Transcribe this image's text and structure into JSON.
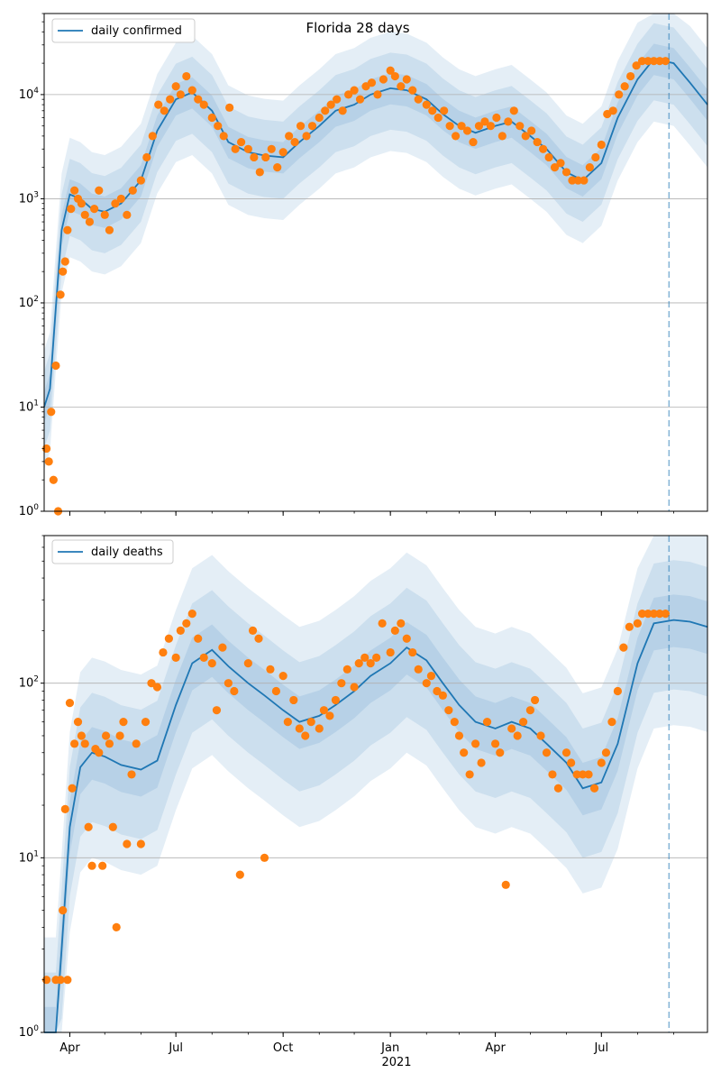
{
  "figure_title": "Florida 28 days",
  "x_axis": {
    "start": "2020-03-10",
    "end": "2021-09-30",
    "ticks": [
      {
        "date": "2020-04-01",
        "label": "Apr"
      },
      {
        "date": "2020-07-01",
        "label": "Jul"
      },
      {
        "date": "2020-10-01",
        "label": "Oct"
      },
      {
        "date": "2021-01-01",
        "label": "Jan"
      },
      {
        "date": "2021-04-01",
        "label": "Apr"
      },
      {
        "date": "2021-07-01",
        "label": "Jul"
      }
    ],
    "year_label": "2021",
    "cutoff_date": "2021-08-28"
  },
  "colors": {
    "line": "#1f77b4",
    "band": "#1f77b4",
    "dots": "#ff7f0e",
    "grid": "#b0b0b0"
  },
  "chart_data": [
    {
      "type": "line",
      "title": "Florida 28 days",
      "legend": "daily confirmed",
      "legend_position": "top-left",
      "yscale": "log",
      "ylim": [
        1,
        60000
      ],
      "yticks": [
        {
          "v": 1,
          "label": "10^0"
        },
        {
          "v": 10,
          "label": "10^1"
        },
        {
          "v": 100,
          "label": "10^2"
        },
        {
          "v": 1000,
          "label": "10^3"
        },
        {
          "v": 10000,
          "label": "10^4"
        }
      ],
      "grid": "horizontal",
      "series": [
        {
          "name": "daily confirmed",
          "kind": "model",
          "x": [
            "2020-03-10",
            "2020-03-15",
            "2020-03-20",
            "2020-03-25",
            "2020-04-01",
            "2020-04-10",
            "2020-04-20",
            "2020-05-01",
            "2020-05-15",
            "2020-06-01",
            "2020-06-15",
            "2020-07-01",
            "2020-07-15",
            "2020-08-01",
            "2020-08-15",
            "2020-09-01",
            "2020-09-15",
            "2020-10-01",
            "2020-10-15",
            "2020-11-01",
            "2020-11-15",
            "2020-12-01",
            "2020-12-15",
            "2021-01-01",
            "2021-01-15",
            "2021-02-01",
            "2021-02-15",
            "2021-03-01",
            "2021-03-15",
            "2021-04-01",
            "2021-04-15",
            "2021-05-01",
            "2021-05-15",
            "2021-06-01",
            "2021-06-15",
            "2021-07-01",
            "2021-07-15",
            "2021-08-01",
            "2021-08-15",
            "2021-09-01",
            "2021-09-15",
            "2021-09-30"
          ],
          "y": [
            10,
            15,
            90,
            500,
            1100,
            1000,
            800,
            750,
            900,
            1500,
            4500,
            9000,
            10500,
            7000,
            3500,
            2800,
            2600,
            2500,
            3500,
            5000,
            7000,
            8000,
            10000,
            11500,
            11000,
            9000,
            6500,
            5000,
            4300,
            5000,
            5500,
            4000,
            3000,
            1800,
            1500,
            2200,
            6000,
            14000,
            22000,
            20000,
            13000,
            8000
          ]
        },
        {
          "name": "",
          "kind": "band_50",
          "lower_factor": 0.7,
          "upper_factor": 1.4
        },
        {
          "name": "",
          "kind": "band_90",
          "lower_factor": 0.4,
          "upper_factor": 2.2
        },
        {
          "name": "",
          "kind": "band_98",
          "lower_factor": 0.25,
          "upper_factor": 3.5
        },
        {
          "name": "",
          "kind": "observed",
          "x": [
            "2020-03-12",
            "2020-03-14",
            "2020-03-16",
            "2020-03-18",
            "2020-03-20",
            "2020-03-22",
            "2020-03-24",
            "2020-03-26",
            "2020-03-28",
            "2020-03-30",
            "2020-04-02",
            "2020-04-05",
            "2020-04-08",
            "2020-04-11",
            "2020-04-14",
            "2020-04-18",
            "2020-04-22",
            "2020-04-26",
            "2020-05-01",
            "2020-05-05",
            "2020-05-10",
            "2020-05-15",
            "2020-05-20",
            "2020-05-25",
            "2020-06-01",
            "2020-06-06",
            "2020-06-11",
            "2020-06-16",
            "2020-06-21",
            "2020-06-26",
            "2020-07-01",
            "2020-07-05",
            "2020-07-10",
            "2020-07-15",
            "2020-07-20",
            "2020-07-25",
            "2020-08-01",
            "2020-08-06",
            "2020-08-11",
            "2020-08-16",
            "2020-08-21",
            "2020-08-26",
            "2020-09-01",
            "2020-09-06",
            "2020-09-11",
            "2020-09-16",
            "2020-09-21",
            "2020-09-26",
            "2020-10-01",
            "2020-10-06",
            "2020-10-11",
            "2020-10-16",
            "2020-10-21",
            "2020-10-26",
            "2020-11-01",
            "2020-11-06",
            "2020-11-11",
            "2020-11-16",
            "2020-11-21",
            "2020-11-26",
            "2020-12-01",
            "2020-12-06",
            "2020-12-11",
            "2020-12-16",
            "2020-12-21",
            "2020-12-26",
            "2021-01-01",
            "2021-01-05",
            "2021-01-10",
            "2021-01-15",
            "2021-01-20",
            "2021-01-25",
            "2021-02-01",
            "2021-02-06",
            "2021-02-11",
            "2021-02-16",
            "2021-02-21",
            "2021-02-26",
            "2021-03-03",
            "2021-03-08",
            "2021-03-13",
            "2021-03-18",
            "2021-03-23",
            "2021-03-28",
            "2021-04-02",
            "2021-04-07",
            "2021-04-12",
            "2021-04-17",
            "2021-04-22",
            "2021-04-27",
            "2021-05-02",
            "2021-05-07",
            "2021-05-12",
            "2021-05-17",
            "2021-05-22",
            "2021-05-27",
            "2021-06-01",
            "2021-06-06",
            "2021-06-11",
            "2021-06-16",
            "2021-06-21",
            "2021-06-26",
            "2021-07-01",
            "2021-07-06",
            "2021-07-11",
            "2021-07-16",
            "2021-07-21",
            "2021-07-26",
            "2021-07-31",
            "2021-08-05",
            "2021-08-10",
            "2021-08-15",
            "2021-08-20",
            "2021-08-25"
          ],
          "y": [
            4,
            3,
            9,
            2,
            25,
            1,
            120,
            200,
            250,
            500,
            800,
            1200,
            1000,
            900,
            700,
            600,
            800,
            1200,
            700,
            500,
            900,
            1000,
            700,
            1200,
            1500,
            2500,
            4000,
            8000,
            7000,
            9000,
            12000,
            10000,
            15000,
            11000,
            9000,
            8000,
            6000,
            5000,
            4000,
            7500,
            3000,
            3500,
            3000,
            2500,
            1800,
            2500,
            3000,
            2000,
            2800,
            4000,
            3500,
            5000,
            4000,
            5000,
            6000,
            7000,
            8000,
            9000,
            7000,
            10000,
            11000,
            9000,
            12000,
            13000,
            10000,
            14000,
            17000,
            15000,
            12000,
            14000,
            11000,
            9000,
            8000,
            7000,
            6000,
            7000,
            5000,
            4000,
            5000,
            4500,
            3500,
            5000,
            5500,
            5000,
            6000,
            4000,
            5500,
            7000,
            5000,
            4000,
            4500,
            3500,
            3000,
            2500,
            2000,
            2200,
            1800,
            1500,
            1500,
            1500,
            2000,
            2500,
            3300,
            6500,
            7000,
            10000,
            12000,
            15000,
            19000,
            21000,
            21000,
            21000,
            21000,
            21000
          ]
        }
      ]
    },
    {
      "type": "line",
      "title": "",
      "legend": "daily deaths",
      "legend_position": "top-left",
      "yscale": "log",
      "ylim": [
        1,
        700
      ],
      "yticks": [
        {
          "v": 1,
          "label": "10^0"
        },
        {
          "v": 10,
          "label": "10^1"
        },
        {
          "v": 100,
          "label": "10^2"
        }
      ],
      "grid": "horizontal",
      "series": [
        {
          "name": "daily deaths",
          "kind": "model",
          "x": [
            "2020-03-10",
            "2020-03-15",
            "2020-03-20",
            "2020-03-25",
            "2020-04-01",
            "2020-04-10",
            "2020-04-20",
            "2020-05-01",
            "2020-05-15",
            "2020-06-01",
            "2020-06-15",
            "2020-07-01",
            "2020-07-15",
            "2020-08-01",
            "2020-08-15",
            "2020-09-01",
            "2020-09-15",
            "2020-10-01",
            "2020-10-15",
            "2020-11-01",
            "2020-11-15",
            "2020-12-01",
            "2020-12-15",
            "2021-01-01",
            "2021-01-15",
            "2021-02-01",
            "2021-02-15",
            "2021-03-01",
            "2021-03-15",
            "2021-04-01",
            "2021-04-15",
            "2021-05-01",
            "2021-05-15",
            "2021-06-01",
            "2021-06-15",
            "2021-07-01",
            "2021-07-15",
            "2021-08-01",
            "2021-08-15",
            "2021-09-01",
            "2021-09-15",
            "2021-09-30"
          ],
          "y": [
            1,
            1,
            1,
            3,
            15,
            33,
            40,
            38,
            34,
            32,
            36,
            75,
            130,
            155,
            125,
            100,
            85,
            70,
            60,
            65,
            75,
            90,
            110,
            130,
            160,
            135,
            100,
            75,
            60,
            55,
            60,
            55,
            45,
            35,
            25,
            27,
            45,
            130,
            220,
            230,
            225,
            210
          ]
        },
        {
          "name": "",
          "kind": "band_50",
          "lower_factor": 0.7,
          "upper_factor": 1.4
        },
        {
          "name": "",
          "kind": "band_90",
          "lower_factor": 0.4,
          "upper_factor": 2.2
        },
        {
          "name": "",
          "kind": "band_98",
          "lower_factor": 0.25,
          "upper_factor": 3.5
        },
        {
          "name": "",
          "kind": "observed",
          "x": [
            "2020-03-12",
            "2020-03-20",
            "2020-03-24",
            "2020-03-26",
            "2020-03-28",
            "2020-03-30",
            "2020-04-01",
            "2020-04-03",
            "2020-04-05",
            "2020-04-08",
            "2020-04-11",
            "2020-04-14",
            "2020-04-17",
            "2020-04-20",
            "2020-04-23",
            "2020-04-26",
            "2020-04-29",
            "2020-05-02",
            "2020-05-05",
            "2020-05-08",
            "2020-05-11",
            "2020-05-14",
            "2020-05-17",
            "2020-05-20",
            "2020-05-24",
            "2020-05-28",
            "2020-06-01",
            "2020-06-05",
            "2020-06-10",
            "2020-06-15",
            "2020-06-20",
            "2020-06-25",
            "2020-07-01",
            "2020-07-05",
            "2020-07-10",
            "2020-07-15",
            "2020-07-20",
            "2020-07-25",
            "2020-08-01",
            "2020-08-05",
            "2020-08-10",
            "2020-08-15",
            "2020-08-20",
            "2020-08-25",
            "2020-09-01",
            "2020-09-05",
            "2020-09-10",
            "2020-09-15",
            "2020-09-20",
            "2020-09-25",
            "2020-10-01",
            "2020-10-05",
            "2020-10-10",
            "2020-10-15",
            "2020-10-20",
            "2020-10-25",
            "2020-11-01",
            "2020-11-05",
            "2020-11-10",
            "2020-11-15",
            "2020-11-20",
            "2020-11-25",
            "2020-12-01",
            "2020-12-05",
            "2020-12-10",
            "2020-12-15",
            "2020-12-20",
            "2020-12-25",
            "2021-01-01",
            "2021-01-05",
            "2021-01-10",
            "2021-01-15",
            "2021-01-20",
            "2021-01-25",
            "2021-02-01",
            "2021-02-05",
            "2021-02-10",
            "2021-02-15",
            "2021-02-20",
            "2021-02-25",
            "2021-03-01",
            "2021-03-05",
            "2021-03-10",
            "2021-03-15",
            "2021-03-20",
            "2021-03-25",
            "2021-04-01",
            "2021-04-05",
            "2021-04-10",
            "2021-04-15",
            "2021-04-20",
            "2021-04-25",
            "2021-05-01",
            "2021-05-05",
            "2021-05-10",
            "2021-05-15",
            "2021-05-20",
            "2021-05-25",
            "2021-06-01",
            "2021-06-05",
            "2021-06-10",
            "2021-06-15",
            "2021-06-20",
            "2021-06-25",
            "2021-07-01",
            "2021-07-05",
            "2021-07-10",
            "2021-07-15",
            "2021-07-20",
            "2021-07-25",
            "2021-08-01",
            "2021-08-05",
            "2021-08-10",
            "2021-08-15",
            "2021-08-20",
            "2021-08-25"
          ],
          "y": [
            2,
            2,
            2,
            5,
            19,
            2,
            77,
            25,
            45,
            60,
            50,
            45,
            15,
            9,
            42,
            40,
            9,
            50,
            45,
            15,
            4,
            50,
            60,
            12,
            30,
            45,
            12,
            60,
            100,
            95,
            150,
            180,
            140,
            200,
            220,
            250,
            180,
            140,
            130,
            70,
            160,
            100,
            90,
            8,
            130,
            200,
            180,
            10,
            120,
            90,
            110,
            60,
            80,
            55,
            50,
            60,
            55,
            70,
            65,
            80,
            100,
            120,
            95,
            130,
            140,
            130,
            140,
            220,
            150,
            200,
            220,
            180,
            150,
            120,
            100,
            110,
            90,
            85,
            70,
            60,
            50,
            40,
            30,
            45,
            35,
            60,
            45,
            40,
            7,
            55,
            50,
            60,
            70,
            80,
            50,
            40,
            30,
            25,
            40,
            35,
            30,
            30,
            30,
            25,
            35,
            40,
            60,
            90,
            160,
            210,
            220,
            250,
            250,
            250,
            250,
            250
          ]
        }
      ]
    }
  ]
}
